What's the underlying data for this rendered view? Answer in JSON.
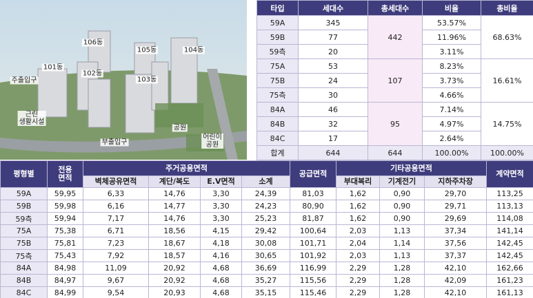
{
  "site_plan": {
    "labels": [
      "106동",
      "105동",
      "104동",
      "101동",
      "102동",
      "103동",
      "주출입구",
      "근린\n생활시설",
      "공원",
      "어린이\n공원",
      "부출입구"
    ]
  },
  "type_table": {
    "headers": [
      "타입",
      "세대수",
      "총세대수",
      "비율",
      "총비율"
    ],
    "groups": [
      {
        "total_units": "442",
        "total_ratio": "68.63%",
        "rows": [
          [
            "59A",
            "345",
            "53.57%"
          ],
          [
            "59B",
            "77",
            "11.96%"
          ],
          [
            "59측",
            "20",
            "3.11%"
          ]
        ]
      },
      {
        "total_units": "107",
        "total_ratio": "16.61%",
        "rows": [
          [
            "75A",
            "53",
            "8.23%"
          ],
          [
            "75B",
            "24",
            "3.73%"
          ],
          [
            "75측",
            "30",
            "4.66%"
          ]
        ]
      },
      {
        "total_units": "95",
        "total_ratio": "14.75%",
        "rows": [
          [
            "84A",
            "46",
            "7.14%"
          ],
          [
            "84B",
            "32",
            "4.97%"
          ],
          [
            "84C",
            "17",
            "2.64%"
          ]
        ]
      }
    ],
    "total": [
      "합계",
      "644",
      "644",
      "100.00%",
      "100.00%"
    ]
  },
  "area_table": {
    "headers": {
      "type": "평형별",
      "exclusive": "전용\n면적",
      "residential_common": "주거공용면적",
      "supply": "공급면적",
      "other_common": "기타공용면적",
      "contract": "계약면적",
      "residential_sub": [
        "벽체공유면적",
        "계단/복도",
        "E.V면적",
        "소계"
      ],
      "other_sub": [
        "부대복리",
        "기계전기",
        "지하주차장"
      ]
    },
    "rows": [
      [
        "59A",
        "59,95",
        "6,33",
        "14,76",
        "3,30",
        "24,39",
        "81,03",
        "1,62",
        "0,90",
        "29,70",
        "113,25"
      ],
      [
        "59B",
        "59,98",
        "6,16",
        "14,77",
        "3,30",
        "24,23",
        "80,90",
        "1,62",
        "0,90",
        "29,71",
        "113,13"
      ],
      [
        "59측",
        "59,94",
        "7,17",
        "14,76",
        "3,30",
        "25,23",
        "81,87",
        "1,62",
        "0,90",
        "29,69",
        "114,08"
      ],
      [
        "75A",
        "75,38",
        "6,71",
        "18,56",
        "4,15",
        "29,42",
        "100,64",
        "2,03",
        "1,13",
        "37,34",
        "141,14"
      ],
      [
        "75B",
        "75,81",
        "7,23",
        "18,67",
        "4,18",
        "30,08",
        "101,71",
        "2,04",
        "1,14",
        "37,56",
        "142,45"
      ],
      [
        "75측",
        "75,43",
        "7,92",
        "18,57",
        "4,16",
        "30,65",
        "101,92",
        "2,03",
        "1,13",
        "37,37",
        "142,45"
      ],
      [
        "84A",
        "84,98",
        "11,09",
        "20,92",
        "4,68",
        "36,69",
        "116,99",
        "2,29",
        "1,28",
        "42,10",
        "162,66"
      ],
      [
        "84B",
        "84,97",
        "9,67",
        "20,92",
        "4,68",
        "35,27",
        "115,56",
        "2,29",
        "1,28",
        "42,09",
        "161,23"
      ],
      [
        "84C",
        "84,99",
        "9,54",
        "20,93",
        "4,68",
        "35,15",
        "115,46",
        "2,29",
        "1,28",
        "42,10",
        "161,13"
      ]
    ]
  }
}
